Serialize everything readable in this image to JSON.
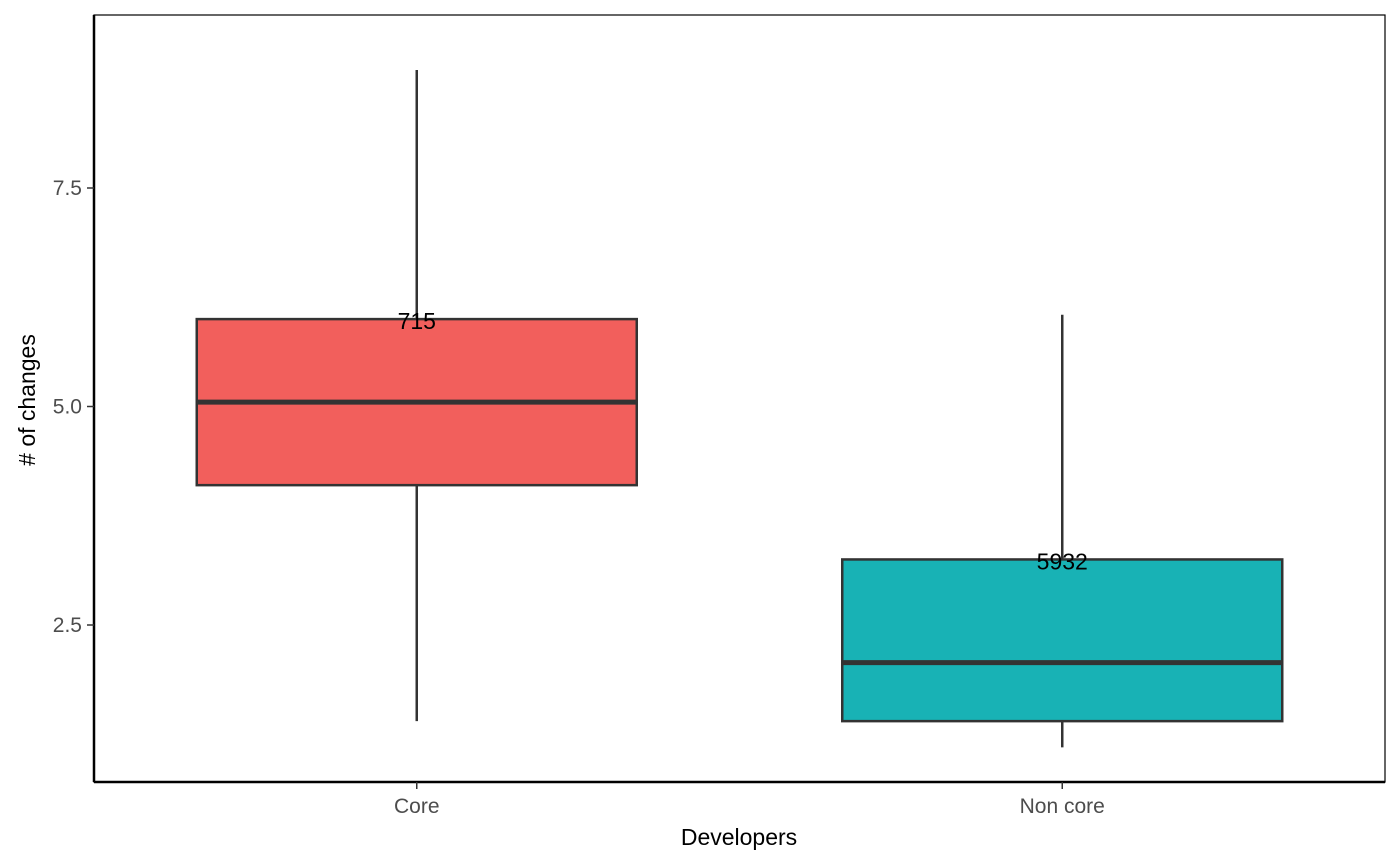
{
  "chart_data": {
    "type": "box",
    "title": "",
    "xlabel": "Developers",
    "ylabel": "# of changes",
    "ylim": [
      0.85,
      9.6
    ],
    "yticks": [
      2.5,
      5.0,
      7.5
    ],
    "ytick_labels": [
      "2.5",
      "5.0",
      "7.5"
    ],
    "grid": false,
    "legend": "none",
    "categories": [
      "Core",
      "Non core"
    ],
    "boxes": [
      {
        "category": "Core",
        "whisker_low": 1.4,
        "q1": 4.1,
        "median": 5.05,
        "q3": 6.0,
        "whisker_high": 8.85,
        "count_label": "715",
        "color": "#F25F5C"
      },
      {
        "category": "Non core",
        "whisker_low": 1.1,
        "q1": 1.4,
        "median": 2.07,
        "q3": 3.25,
        "whisker_high": 6.05,
        "count_label": "5932",
        "color": "#18B2B5"
      }
    ]
  }
}
